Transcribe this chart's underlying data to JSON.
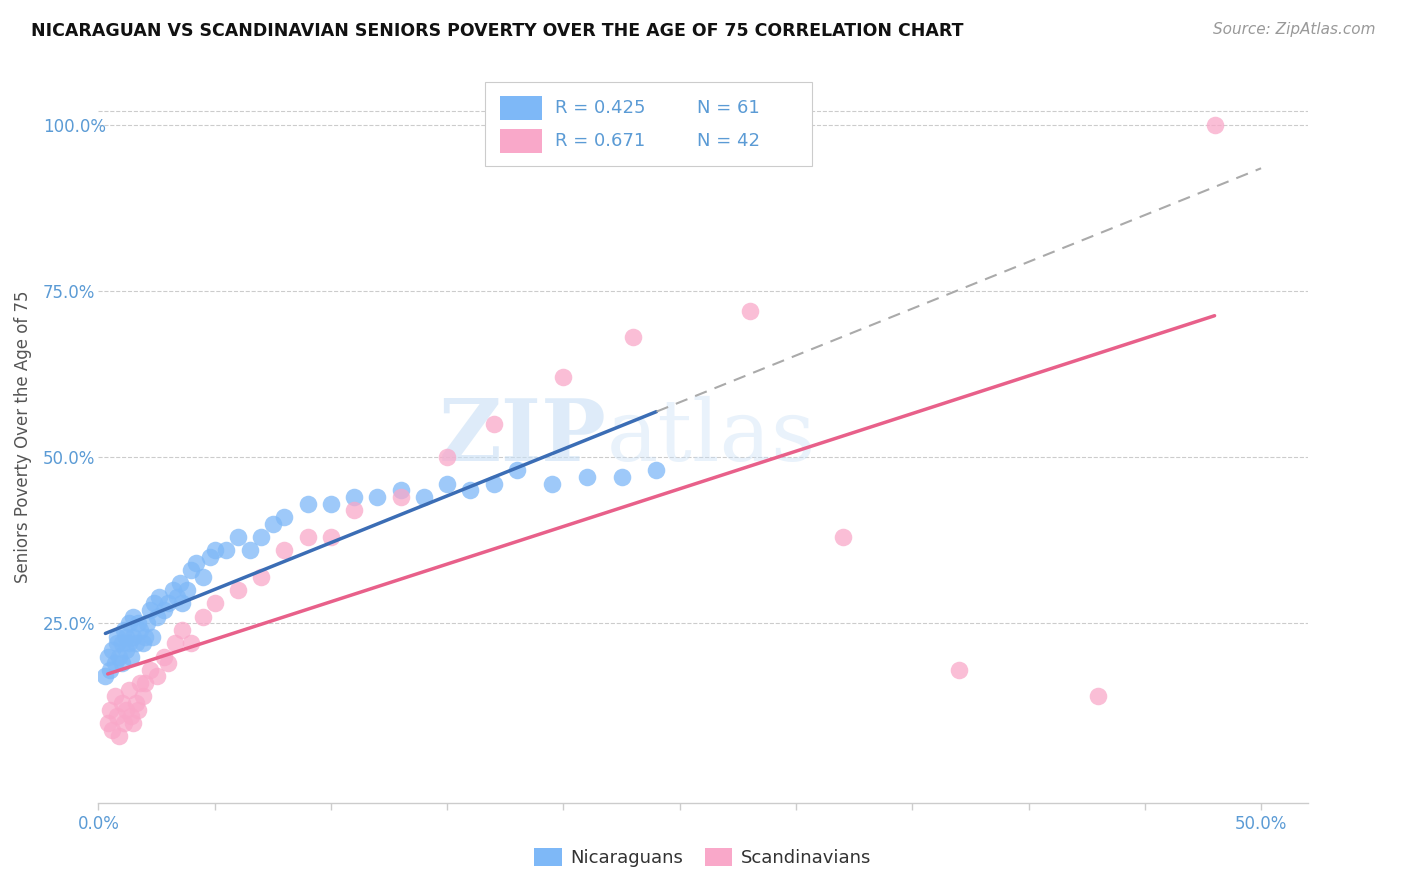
{
  "title": "NICARAGUAN VS SCANDINAVIAN SENIORS POVERTY OVER THE AGE OF 75 CORRELATION CHART",
  "source": "Source: ZipAtlas.com",
  "ylabel": "Seniors Poverty Over the Age of 75",
  "xlim": [
    0.0,
    0.52
  ],
  "ylim": [
    -0.02,
    1.08
  ],
  "yticks": [
    0.0,
    0.25,
    0.5,
    0.75,
    1.0
  ],
  "ytick_labels": [
    "",
    "25.0%",
    "50.0%",
    "75.0%",
    "100.0%"
  ],
  "xticks": [
    0.0,
    0.05,
    0.1,
    0.15,
    0.2,
    0.25,
    0.3,
    0.35,
    0.4,
    0.45,
    0.5
  ],
  "xtick_major_labels": {
    "0.0": "0.0%",
    "0.5": "50.0%"
  },
  "watermark_zip": "ZIP",
  "watermark_atlas": "atlas",
  "nicaraguan_color": "#7EB8F7",
  "nicaraguan_edge": "#5B9BD5",
  "scandinavian_color": "#F9A8C9",
  "scandinavian_edge": "#F870A8",
  "nicaraguan_line_color": "#3B6DB5",
  "scandinavian_line_color": "#E8608A",
  "legend_R_nicaraguan": "R = 0.425",
  "legend_N_nicaraguan": "N = 61",
  "legend_R_scandinavian": "R = 0.671",
  "legend_N_scandinavian": "N = 42",
  "nic_x": [
    0.003,
    0.004,
    0.005,
    0.006,
    0.007,
    0.008,
    0.008,
    0.009,
    0.01,
    0.01,
    0.011,
    0.012,
    0.012,
    0.013,
    0.013,
    0.014,
    0.015,
    0.015,
    0.016,
    0.017,
    0.018,
    0.019,
    0.02,
    0.021,
    0.022,
    0.023,
    0.024,
    0.025,
    0.026,
    0.028,
    0.03,
    0.032,
    0.034,
    0.035,
    0.036,
    0.038,
    0.04,
    0.042,
    0.045,
    0.048,
    0.05,
    0.055,
    0.06,
    0.065,
    0.07,
    0.075,
    0.08,
    0.09,
    0.1,
    0.11,
    0.12,
    0.13,
    0.14,
    0.15,
    0.16,
    0.17,
    0.18,
    0.195,
    0.21,
    0.225,
    0.24
  ],
  "nic_y": [
    0.17,
    0.2,
    0.18,
    0.21,
    0.19,
    0.22,
    0.23,
    0.2,
    0.19,
    0.22,
    0.24,
    0.21,
    0.23,
    0.22,
    0.25,
    0.2,
    0.23,
    0.26,
    0.22,
    0.25,
    0.24,
    0.22,
    0.23,
    0.25,
    0.27,
    0.23,
    0.28,
    0.26,
    0.29,
    0.27,
    0.28,
    0.3,
    0.29,
    0.31,
    0.28,
    0.3,
    0.33,
    0.34,
    0.32,
    0.35,
    0.36,
    0.36,
    0.38,
    0.36,
    0.38,
    0.4,
    0.41,
    0.43,
    0.43,
    0.44,
    0.44,
    0.45,
    0.44,
    0.46,
    0.45,
    0.46,
    0.48,
    0.46,
    0.47,
    0.47,
    0.48
  ],
  "sca_x": [
    0.004,
    0.005,
    0.006,
    0.007,
    0.008,
    0.009,
    0.01,
    0.011,
    0.012,
    0.013,
    0.014,
    0.015,
    0.016,
    0.017,
    0.018,
    0.019,
    0.02,
    0.022,
    0.025,
    0.028,
    0.03,
    0.033,
    0.036,
    0.04,
    0.045,
    0.05,
    0.06,
    0.07,
    0.08,
    0.09,
    0.1,
    0.11,
    0.13,
    0.15,
    0.17,
    0.2,
    0.23,
    0.28,
    0.32,
    0.37,
    0.43,
    0.48
  ],
  "sca_y": [
    0.1,
    0.12,
    0.09,
    0.14,
    0.11,
    0.08,
    0.13,
    0.1,
    0.12,
    0.15,
    0.11,
    0.1,
    0.13,
    0.12,
    0.16,
    0.14,
    0.16,
    0.18,
    0.17,
    0.2,
    0.19,
    0.22,
    0.24,
    0.22,
    0.26,
    0.28,
    0.3,
    0.32,
    0.36,
    0.38,
    0.38,
    0.42,
    0.44,
    0.5,
    0.55,
    0.62,
    0.68,
    0.72,
    0.38,
    0.18,
    0.14,
    1.0
  ]
}
